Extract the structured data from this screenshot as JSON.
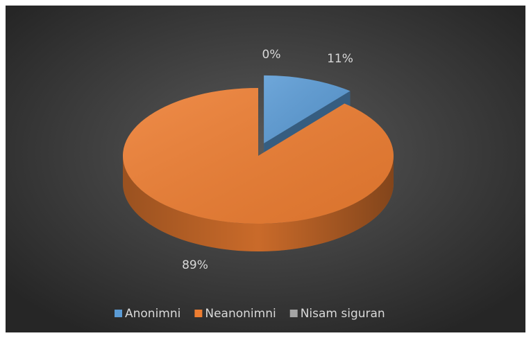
{
  "chart_data": {
    "type": "pie",
    "categories": [
      "Anonimni",
      "Neanonimni",
      "Nisam siguran"
    ],
    "values": [
      11,
      89,
      0
    ],
    "value_labels": [
      "11%",
      "89%",
      "0%"
    ],
    "colors": [
      "#5b9bd5",
      "#ed7d31",
      "#a5a5a5"
    ],
    "legend": "bottom"
  }
}
